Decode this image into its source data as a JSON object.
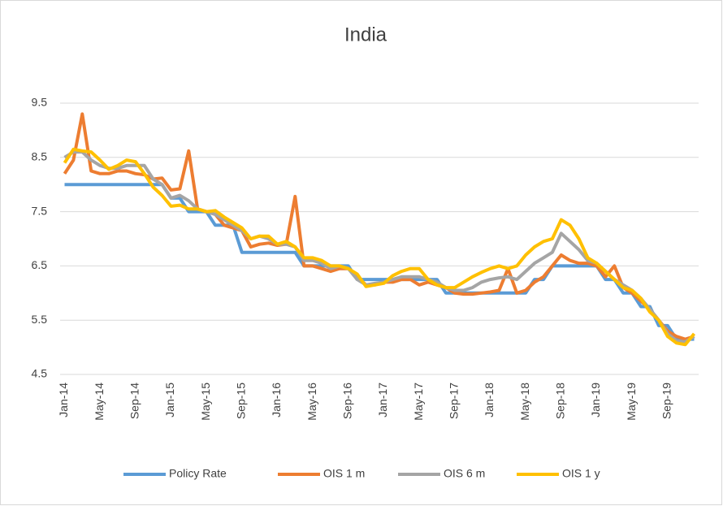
{
  "chart_data": {
    "type": "line",
    "title": "India",
    "categories": [
      "Jan-14",
      null,
      null,
      null,
      "May-14",
      null,
      null,
      null,
      "Sep-14",
      null,
      null,
      null,
      "Jan-15",
      null,
      null,
      null,
      "May-15",
      null,
      null,
      null,
      "Sep-15",
      null,
      null,
      null,
      "Jan-16",
      null,
      null,
      null,
      "May-16",
      null,
      null,
      null,
      "Sep-16",
      null,
      null,
      null,
      "Jan-17",
      null,
      null,
      null,
      "May-17",
      null,
      null,
      null,
      "Sep-17",
      null,
      null,
      null,
      "Jan-18",
      null,
      null,
      null,
      "May-18",
      null,
      null,
      null,
      "Sep-18",
      null,
      null,
      null,
      "Jan-19",
      null,
      null,
      null,
      "May-19",
      null,
      null,
      null,
      "Sep-19",
      null,
      null,
      null
    ],
    "series": [
      {
        "name": "Policy Rate",
        "color": "#5b9bd5",
        "values": [
          8,
          8,
          8,
          8,
          8,
          8,
          8,
          8,
          8,
          8,
          8,
          8,
          7.75,
          7.75,
          7.5,
          7.5,
          7.5,
          7.25,
          7.25,
          7.25,
          6.75,
          6.75,
          6.75,
          6.75,
          6.75,
          6.75,
          6.75,
          6.5,
          6.5,
          6.5,
          6.5,
          6.5,
          6.5,
          6.25,
          6.25,
          6.25,
          6.25,
          6.25,
          6.25,
          6.25,
          6.25,
          6.25,
          6.25,
          6,
          6,
          6,
          6,
          6,
          6,
          6,
          6,
          6,
          6,
          6.25,
          6.25,
          6.5,
          6.5,
          6.5,
          6.5,
          6.5,
          6.5,
          6.25,
          6.25,
          6,
          6,
          5.75,
          5.75,
          5.4,
          5.4,
          5.15,
          5.15,
          5.15
        ]
      },
      {
        "name": "OIS 1 m",
        "color": "#ed7d31",
        "values": [
          8.2,
          8.45,
          9.3,
          8.25,
          8.2,
          8.2,
          8.25,
          8.25,
          8.2,
          8.18,
          8.1,
          8.12,
          7.9,
          7.92,
          8.62,
          7.55,
          7.5,
          7.45,
          7.25,
          7.2,
          7.15,
          6.85,
          6.9,
          6.92,
          6.88,
          6.9,
          7.78,
          6.5,
          6.5,
          6.45,
          6.4,
          6.45,
          6.45,
          6.3,
          6.15,
          6.15,
          6.2,
          6.2,
          6.25,
          6.25,
          6.15,
          6.2,
          6.15,
          6.1,
          6,
          5.98,
          5.98,
          6,
          6.02,
          6.05,
          6.45,
          6,
          6.05,
          6.2,
          6.3,
          6.5,
          6.7,
          6.6,
          6.55,
          6.55,
          6.5,
          6.3,
          6.5,
          6.1,
          6,
          5.85,
          5.7,
          5.5,
          5.3,
          5.2,
          5.15,
          5.2
        ]
      },
      {
        "name": "OIS 6 m",
        "color": "#a5a5a5",
        "values": [
          8.5,
          8.6,
          8.6,
          8.45,
          8.35,
          8.3,
          8.3,
          8.35,
          8.35,
          8.35,
          8.1,
          8,
          7.75,
          7.8,
          7.7,
          7.55,
          7.5,
          7.45,
          7.35,
          7.25,
          7.15,
          7,
          7.05,
          7,
          6.9,
          6.9,
          6.85,
          6.6,
          6.6,
          6.55,
          6.45,
          6.5,
          6.45,
          6.25,
          6.15,
          6.18,
          6.2,
          6.25,
          6.3,
          6.3,
          6.3,
          6.25,
          6.2,
          6.1,
          6.05,
          6.05,
          6.1,
          6.2,
          6.25,
          6.28,
          6.3,
          6.25,
          6.4,
          6.55,
          6.65,
          6.75,
          7.1,
          6.95,
          6.8,
          6.6,
          6.55,
          6.4,
          6.25,
          6.15,
          6.05,
          5.9,
          5.7,
          5.5,
          5.25,
          5.12,
          5.1,
          5.2
        ]
      },
      {
        "name": "OIS 1 y",
        "color": "#ffc000",
        "values": [
          8.4,
          8.65,
          8.62,
          8.6,
          8.45,
          8.28,
          8.35,
          8.45,
          8.42,
          8.2,
          7.95,
          7.8,
          7.6,
          7.62,
          7.55,
          7.55,
          7.5,
          7.52,
          7.4,
          7.3,
          7.2,
          7,
          7.05,
          7.05,
          6.9,
          6.95,
          6.85,
          6.65,
          6.65,
          6.6,
          6.5,
          6.5,
          6.45,
          6.35,
          6.12,
          6.15,
          6.18,
          6.32,
          6.4,
          6.45,
          6.45,
          6.25,
          6.15,
          6.1,
          6.1,
          6.2,
          6.3,
          6.38,
          6.45,
          6.5,
          6.45,
          6.5,
          6.7,
          6.85,
          6.95,
          7,
          7.35,
          7.25,
          7,
          6.65,
          6.55,
          6.4,
          6.25,
          6.1,
          6.05,
          5.9,
          5.65,
          5.5,
          5.2,
          5.08,
          5.05,
          5.25
        ]
      }
    ],
    "ylim": [
      4.5,
      9.5
    ],
    "yticks": [
      4.5,
      5.5,
      6.5,
      7.5,
      8.5,
      9.5
    ],
    "grid": true,
    "legend": "bottom"
  }
}
